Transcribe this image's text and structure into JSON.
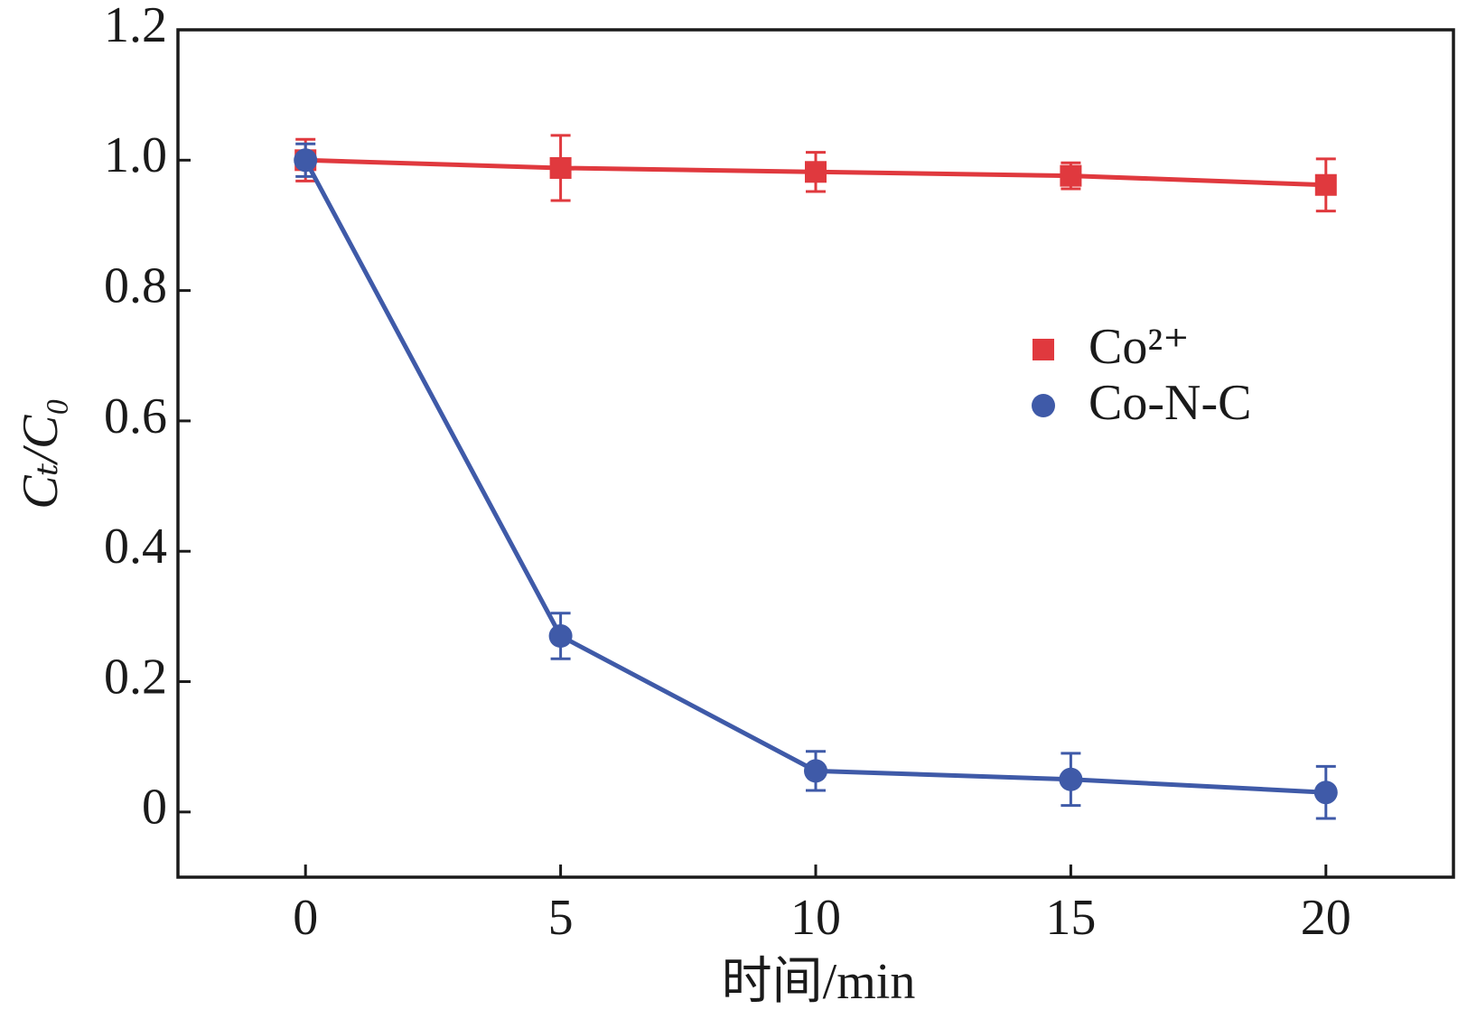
{
  "chart_data": {
    "type": "line",
    "x_label": "时间/min",
    "y_label": "Cₜ/C₀",
    "x": [
      0,
      5,
      10,
      15,
      20
    ],
    "xlim": [
      -2.5,
      22.5
    ],
    "xticks": [
      0,
      5,
      10,
      15,
      20
    ],
    "ylim": [
      -0.1,
      1.2
    ],
    "yticks": [
      0,
      0.2,
      0.4,
      0.6,
      0.8,
      {
        "value": 1,
        "label": "1.0"
      },
      1.2
    ],
    "legend_position": "center right",
    "series": [
      {
        "name": "Co²⁺",
        "color": "#e0393e",
        "marker": "square",
        "values": [
          1.0,
          0.988,
          0.982,
          0.976,
          0.962
        ],
        "errors": [
          0.032,
          0.05,
          0.03,
          0.02,
          0.04
        ]
      },
      {
        "name": "Co-N-C",
        "color": "#3f5aa8",
        "marker": "circle",
        "values": [
          1.0,
          0.27,
          0.063,
          0.05,
          0.03
        ],
        "errors": [
          0.025,
          0.035,
          0.03,
          0.04,
          0.04
        ]
      }
    ]
  }
}
